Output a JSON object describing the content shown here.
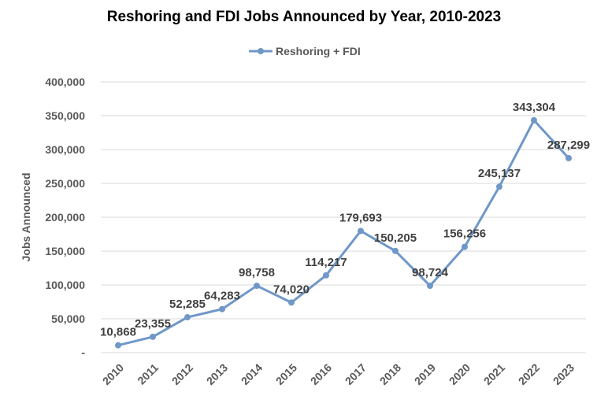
{
  "chart_data": {
    "type": "line",
    "title": "Reshoring and FDI Jobs Announced by Year, 2010-2023",
    "xlabel": "",
    "ylabel": "Jobs Announced",
    "x": [
      "2010",
      "2011",
      "2012",
      "2013",
      "2014",
      "2015",
      "2016",
      "2017",
      "2018",
      "2019",
      "2020",
      "2021",
      "2022",
      "2023"
    ],
    "series": [
      {
        "name": "Reshoring + FDI",
        "values": [
          10868,
          23355,
          52285,
          64283,
          98758,
          74020,
          114217,
          179693,
          150205,
          98724,
          156256,
          245137,
          343304,
          287299
        ],
        "labels": [
          "10,868",
          "23,355",
          "52,285",
          "64,283",
          "98,758",
          "74,020",
          "114,217",
          "179,693",
          "150,205",
          "98,724",
          "156,256",
          "245,137",
          "343,304",
          "287,299"
        ],
        "color": "#6f97c8"
      }
    ],
    "ylim": [
      0,
      400000
    ],
    "yticks": [
      0,
      50000,
      100000,
      150000,
      200000,
      250000,
      300000,
      350000,
      400000
    ],
    "ytick_labels": [
      "-",
      "50,000",
      "100,000",
      "150,000",
      "200,000",
      "250,000",
      "300,000",
      "350,000",
      "400,000"
    ],
    "grid": true,
    "legend": "top-center"
  }
}
